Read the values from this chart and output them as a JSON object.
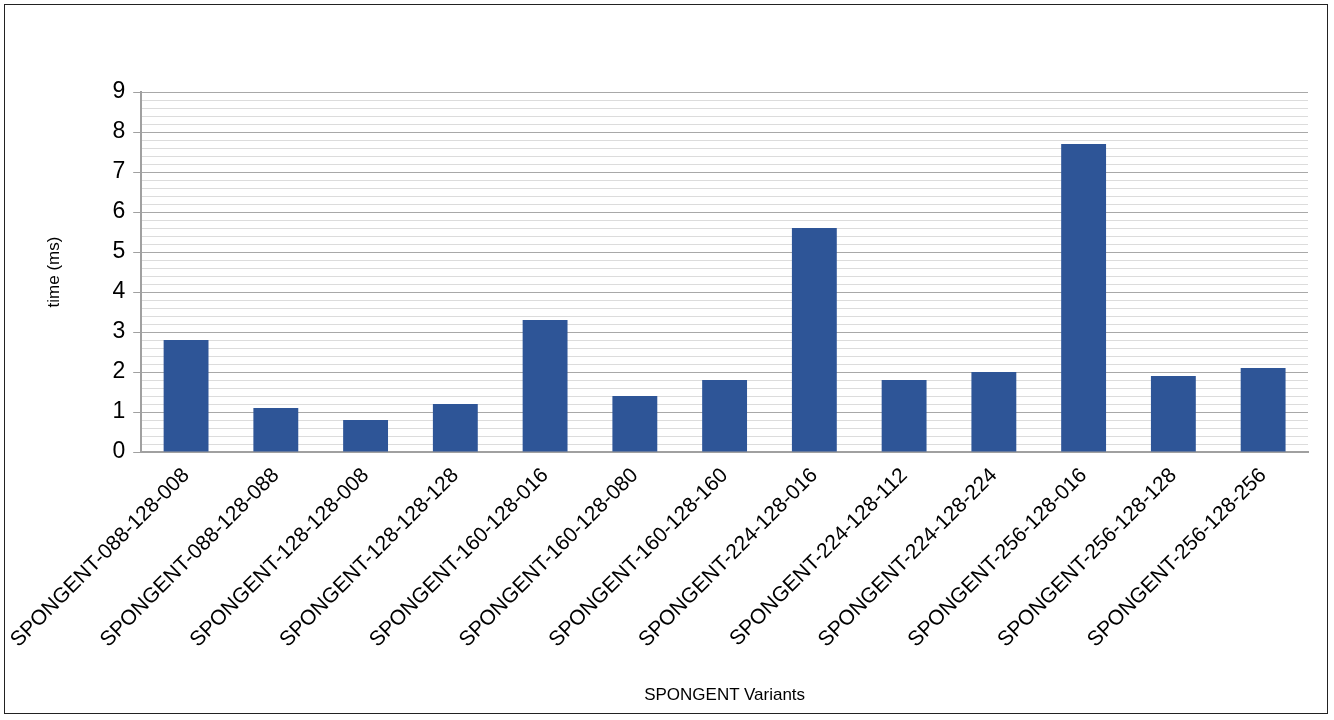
{
  "chart_data": {
    "type": "bar",
    "xlabel": "SPONGENT Variants",
    "ylabel": "time (ms)",
    "categories": [
      "SPONGENT-088-128-008",
      "SPONGENT-088-128-088",
      "SPONGENT-128-128-008",
      "SPONGENT-128-128-128",
      "SPONGENT-160-128-016",
      "SPONGENT-160-128-080",
      "SPONGENT-160-128-160",
      "SPONGENT-224-128-016",
      "SPONGENT-224-128-112",
      "SPONGENT-224-128-224",
      "SPONGENT-256-128-016",
      "SPONGENT-256-128-128",
      "SPONGENT-256-128-256"
    ],
    "values": [
      2.8,
      1.1,
      0.8,
      1.2,
      3.3,
      1.4,
      1.8,
      5.6,
      1.8,
      2.0,
      7.7,
      1.9,
      2.1
    ],
    "color": "#2e5597",
    "ylim": [
      0,
      9
    ],
    "yticks": [
      0,
      {
        "value": 0.2,
        "label": null
      },
      {
        "value": 0.4,
        "label": null
      },
      {
        "value": 0.6,
        "label": null
      },
      {
        "value": 0.8,
        "label": null
      },
      1,
      {
        "value": 1.2,
        "label": null
      },
      {
        "value": 1.4,
        "label": null
      },
      {
        "value": 1.6,
        "label": null
      },
      {
        "value": 1.8,
        "label": null
      },
      2,
      {
        "value": 2.2,
        "label": null
      },
      {
        "value": 2.4,
        "label": null
      },
      {
        "value": 2.6,
        "label": null
      },
      {
        "value": 2.8,
        "label": null
      },
      3,
      {
        "value": 3.2,
        "label": null
      },
      {
        "value": 3.4,
        "label": null
      },
      {
        "value": 3.6,
        "label": null
      },
      {
        "value": 3.8,
        "label": null
      },
      4,
      {
        "value": 4.2,
        "label": null
      },
      {
        "value": 4.4,
        "label": null
      },
      {
        "value": 4.6,
        "label": null
      },
      {
        "value": 4.8,
        "label": null
      },
      5,
      {
        "value": 5.2,
        "label": null
      },
      {
        "value": 5.4,
        "label": null
      },
      {
        "value": 5.6,
        "label": null
      },
      {
        "value": 5.8,
        "label": null
      },
      6,
      {
        "value": 6.2,
        "label": null
      },
      {
        "value": 6.4,
        "label": null
      },
      {
        "value": 6.6,
        "label": null
      },
      {
        "value": 6.8,
        "label": null
      },
      7,
      {
        "value": 7.2,
        "label": null
      },
      {
        "value": 7.4,
        "label": null
      },
      {
        "value": 7.6,
        "label": null
      },
      {
        "value": 7.8,
        "label": null
      },
      8,
      {
        "value": 8.2,
        "label": null
      },
      {
        "value": 8.4,
        "label": null
      },
      {
        "value": 8.6,
        "label": null
      },
      {
        "value": 8.8,
        "label": null
      },
      9
    ],
    "grid": "y",
    "legend": false
  }
}
